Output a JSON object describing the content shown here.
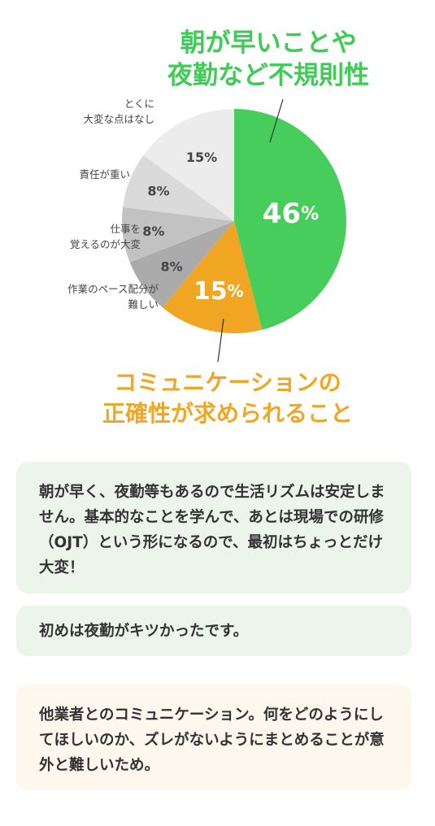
{
  "chart_data": {
    "type": "pie",
    "categories": [
      "朝が早いことや夜勤など不規則性",
      "コミュニケーションの正確性が求められること",
      "作業のペース配分が難しい",
      "仕事を覚えるのが大変",
      "責任が重い",
      "とくに大変な点はなし"
    ],
    "values": [
      46,
      15,
      8,
      8,
      8,
      15
    ],
    "value_labels": [
      "46",
      "15",
      "8%",
      "8%",
      "8%",
      "15%"
    ],
    "unit": "%",
    "colors": [
      "#46cd5b",
      "#f0a623",
      "#ababab",
      "#c2c2c2",
      "#dadada",
      "#ececec"
    ]
  },
  "callouts": {
    "green_line1": "朝が早いことや",
    "green_line2": "夜勤など不規則性",
    "orange_line1": "コミュニケーションの",
    "orange_line2": "正確性が求められること"
  },
  "side_labels": {
    "none_line1": "とくに",
    "none_line2": "大変な点はなし",
    "responsibility": "責任が重い",
    "learn_line1": "仕事を",
    "learn_line2": "覚えるのが大変",
    "pace_line1": "作業のペース配分が",
    "pace_line2": "難しい"
  },
  "comments": [
    {
      "text": "朝が早く、夜勤等もあるので生活リズムは安定しません。基本的なことを学んで、あとは現場での研修（OJT）という形になるので、最初はちょっとだけ大変！"
    },
    {
      "text": "初めは夜勤がキツかったです。"
    },
    {
      "text": "他業者とのコミュニケーション。何をどのようにしてほしいのか、ズレがないようにまとめることが意外と難しいため。"
    }
  ]
}
